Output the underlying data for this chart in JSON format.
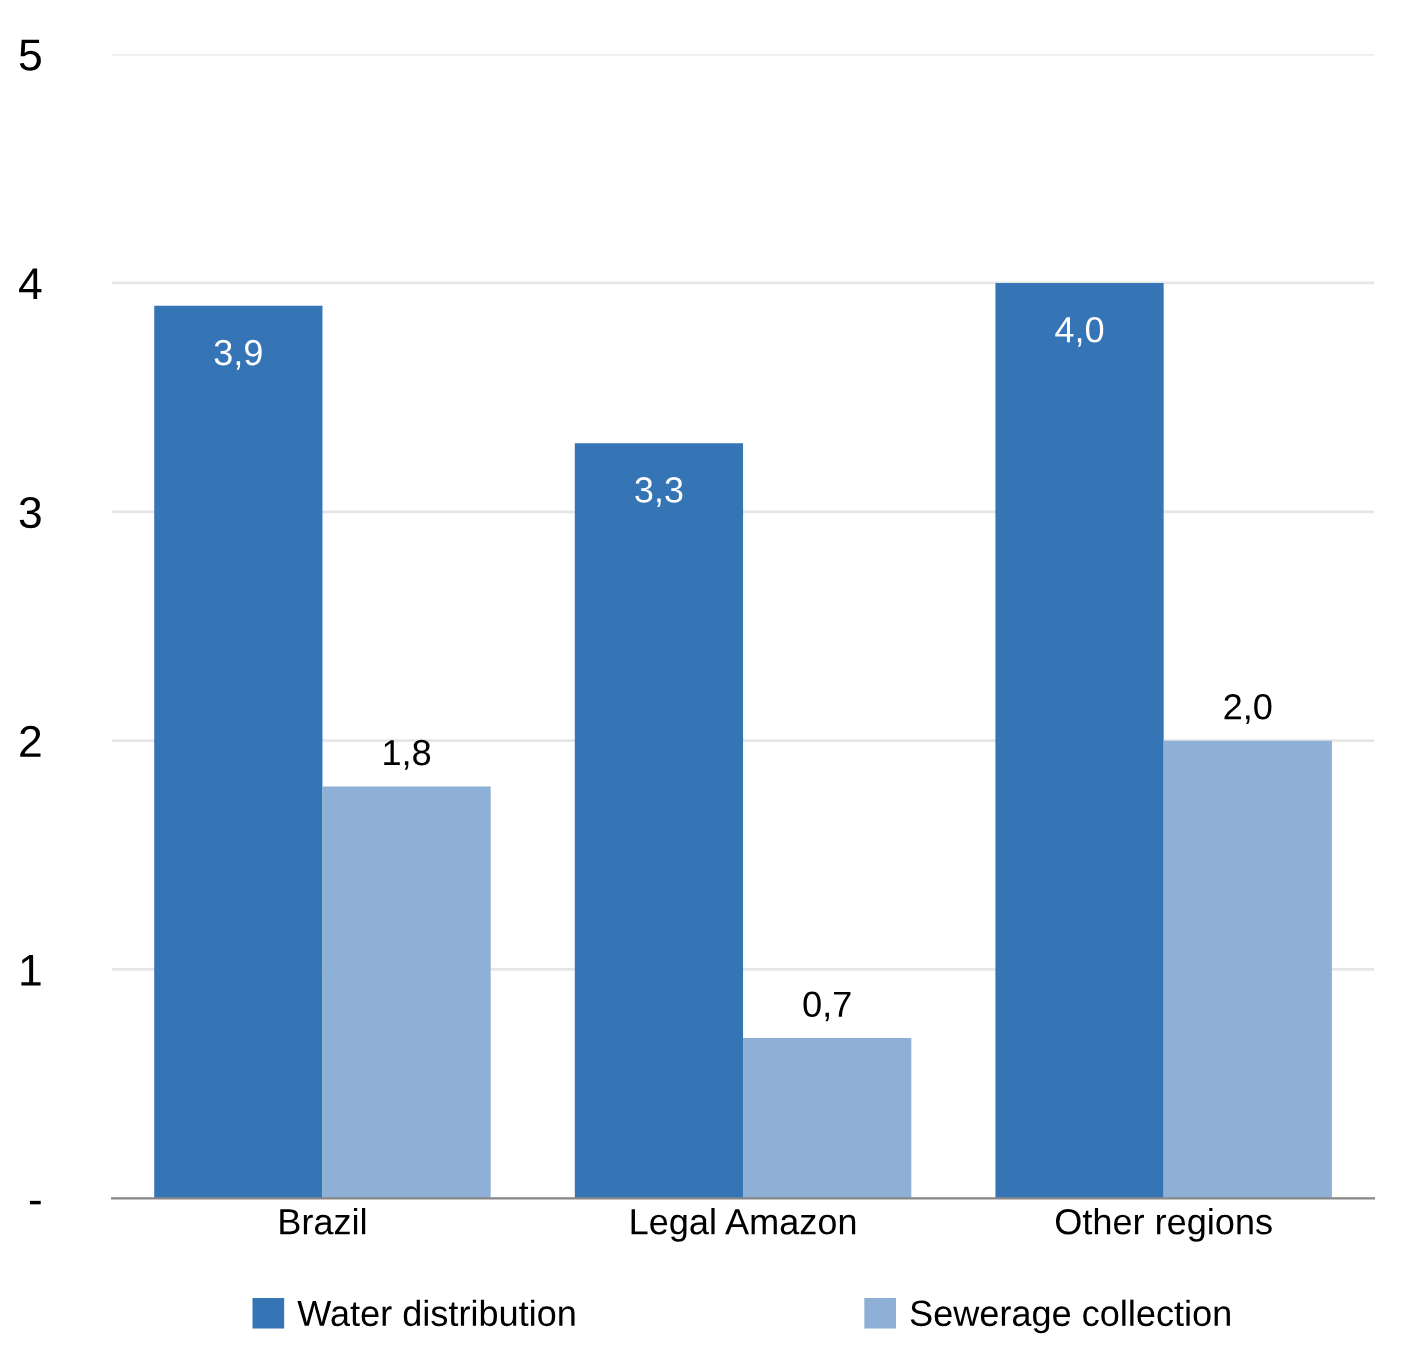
{
  "chart_data": {
    "type": "bar",
    "categories": [
      "Brazil",
      "Legal Amazon",
      "Other regions"
    ],
    "series": [
      {
        "name": "Water distribution",
        "color": "#3574b5",
        "values": [
          3.9,
          3.3,
          4.0
        ],
        "value_labels": [
          "3,9",
          "3,3",
          "4,0"
        ]
      },
      {
        "name": "Sewerage collection",
        "color": "#8eafd6",
        "values": [
          1.8,
          0.7,
          2.0
        ],
        "value_labels": [
          "1,8",
          "0,7",
          "2,0"
        ]
      }
    ],
    "ylim": [
      0,
      5
    ],
    "yticks": [
      {
        "value": 0,
        "label": "-"
      },
      1,
      2,
      3,
      4,
      5
    ],
    "grid": "y",
    "legend": "bottom"
  }
}
